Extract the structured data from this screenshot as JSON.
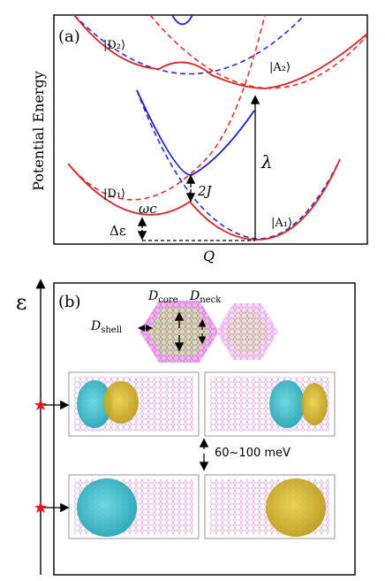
{
  "panel_a": {
    "tag": "(a)",
    "ylabel": "Potential Energy",
    "xlabel": "Q",
    "state_d2": "|D₂⟩",
    "state_a2": "|A₂⟩",
    "state_d1": "|D₁⟩",
    "state_a1": "|A₁⟩",
    "lambda": "λ",
    "coupling": "2J",
    "omega": "ωc",
    "delta_eps": "Δε",
    "colors": {
      "diabatic": "#d62728",
      "adiabatic": "#1f1fcf",
      "diabatic_dash": "#e8302a",
      "adiabatic_dash": "#2a2ad8"
    }
  },
  "panel_b": {
    "tag": "(b)",
    "axis_label": "ε",
    "d_core": "Dcore",
    "d_neck": "Dneck",
    "d_shell": "Dshell",
    "energy_gap": "60~100 meV",
    "colors": {
      "lattice": "#d66ad6",
      "shell_fill": "#f0b4ef",
      "core_fill": "#c8e6a0",
      "cyan": "#29b8c8",
      "yellow": "#d4b421",
      "marker": "#e8141e"
    }
  }
}
